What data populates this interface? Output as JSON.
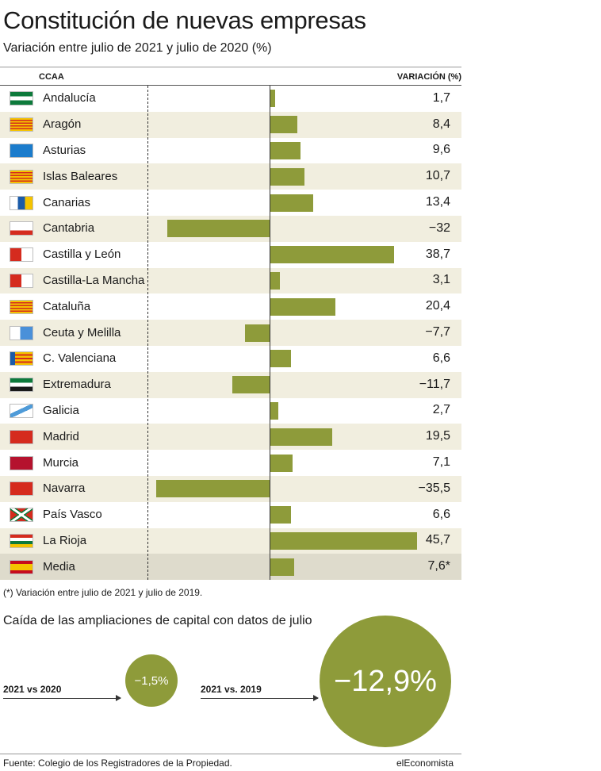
{
  "header": {
    "title": "Constitución de nuevas empresas",
    "subtitle": "Variación entre julio de 2021 y julio de 2020 (%)"
  },
  "table": {
    "col_region": "CCAA",
    "col_variation": "VARIACIÓN (%)"
  },
  "chart_data": {
    "type": "bar",
    "orientation": "horizontal",
    "title": "Constitución de nuevas empresas",
    "subtitle": "Variación entre julio de 2021 y julio de 2020 (%)",
    "categories": [
      "Andalucía",
      "Aragón",
      "Asturias",
      "Islas Baleares",
      "Canarias",
      "Cantabria",
      "Castilla y León",
      "Castilla-La Mancha",
      "Cataluña",
      "Ceuta y Melilla",
      "C. Valenciana",
      "Extremadura",
      "Galicia",
      "Madrid",
      "Murcia",
      "Navarra",
      "País Vasco",
      "La Rioja",
      "Media"
    ],
    "values": [
      1.7,
      8.4,
      9.6,
      10.7,
      13.4,
      -32,
      38.7,
      3.1,
      20.4,
      -7.7,
      6.6,
      -11.7,
      2.7,
      19.5,
      7.1,
      -35.5,
      6.6,
      45.7,
      7.6
    ],
    "value_labels": [
      "1,7",
      "8,4",
      "9,6",
      "10,7",
      "13,4",
      "−32",
      "38,7",
      "3,1",
      "20,4",
      "−7,7",
      "6,6",
      "−11,7",
      "2,7",
      "19,5",
      "7,1",
      "−35,5",
      "6,6",
      "45,7",
      "7,6*"
    ],
    "flags": [
      "andalucia",
      "aragon",
      "asturias",
      "baleares",
      "canarias",
      "cantabria",
      "castilla-leon",
      "castilla-la-mancha",
      "cataluna",
      "ceuta-melilla",
      "valenciana",
      "extremadura",
      "galicia",
      "madrid",
      "murcia",
      "navarra",
      "pais-vasco",
      "la-rioja",
      "espana"
    ],
    "xlim": [
      -40,
      47
    ],
    "bar_color": "#8e9b3a",
    "shade_color": "#f1eedf",
    "highlight_color": "#dedbcc"
  },
  "footnote": "(*) Variación entre julio de 2021 y julio de 2019.",
  "capital": {
    "title": "Caída de las ampliaciones de capital con datos de julio",
    "items": [
      {
        "label": "2021 vs 2020",
        "value_label": "−1,5%",
        "value": -1.5
      },
      {
        "label": "2021 vs. 2019",
        "value_label": "−12,9%",
        "value": -12.9
      }
    ]
  },
  "footer": {
    "source": "Fuente: Colegio de los Registradores de la Propiedad.",
    "brand": "elEconomista"
  }
}
